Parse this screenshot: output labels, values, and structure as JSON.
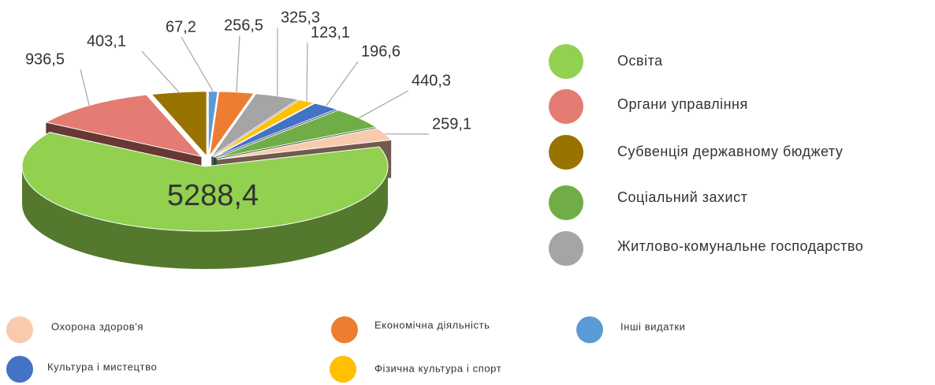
{
  "chart_data": {
    "type": "pie",
    "categories": [
      "Інші видатки",
      "Економічна діяльність",
      "Житлово-комунальне господарство",
      "Фізична культура  і спорт",
      "Культура  і мистецтво",
      "Соціальний захист",
      "Охорона здоров'я",
      "Освіта",
      "Органи управління",
      "Субвенція державному бюджету"
    ],
    "values": [
      67.2,
      256.5,
      325.3,
      123.1,
      196.6,
      440.3,
      259.1,
      5288.4,
      936.5,
      403.1
    ],
    "value_labels": [
      "67,2",
      "256,5",
      "325,3",
      "123,1",
      "196,6",
      "440,3",
      "259,1",
      "5288,4",
      "936,5",
      "403,1"
    ],
    "colors": [
      "#5b9bd5",
      "#ed7d31",
      "#a5a5a5",
      "#ffc000",
      "#4472c4",
      "#70ad47",
      "#f8cbad",
      "#92d050",
      "#e57c73",
      "#997300"
    ]
  }
}
